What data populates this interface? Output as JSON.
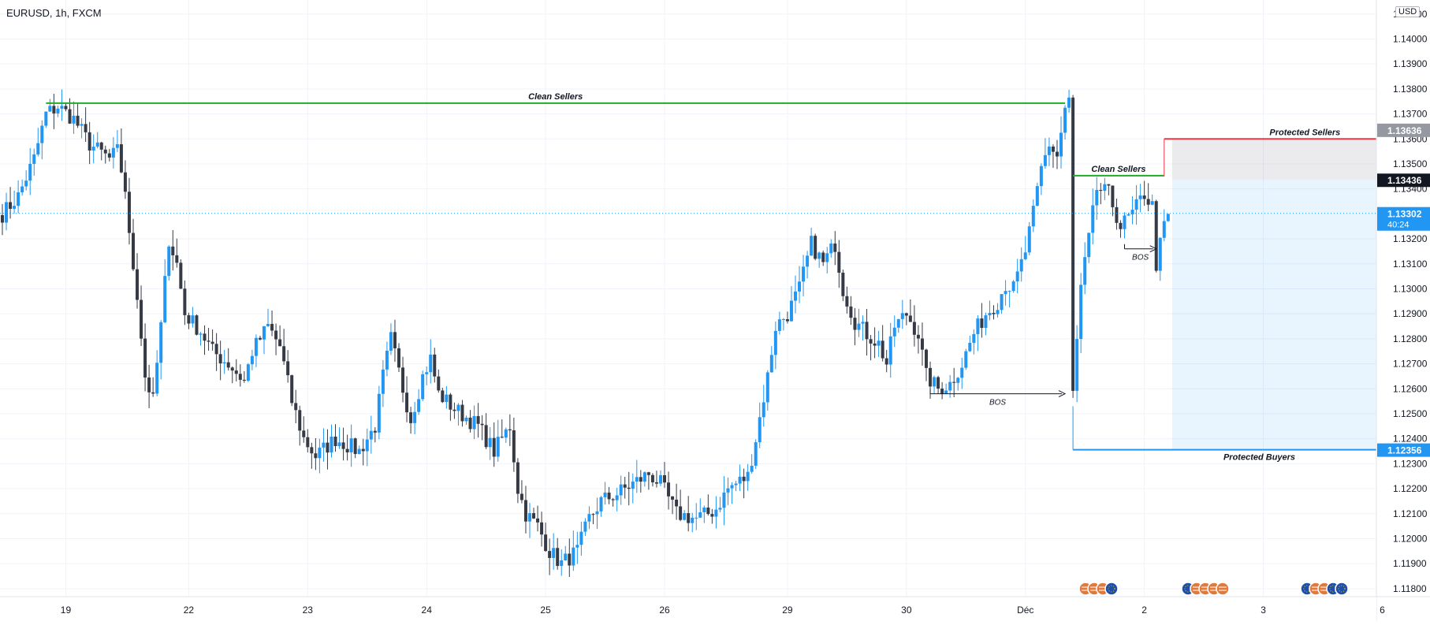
{
  "header": {
    "symbol_title": "EURUSD, 1h, FXCM",
    "currency": "USD"
  },
  "chart_data": {
    "type": "candlestick",
    "price_ticks": [
      "1.14100",
      "1.14000",
      "1.13900",
      "1.13800",
      "1.13700",
      "1.13600",
      "1.13500",
      "1.13400",
      "1.13200",
      "1.13100",
      "1.13000",
      "1.12900",
      "1.12800",
      "1.12700",
      "1.12600",
      "1.12500",
      "1.12400",
      "1.12300",
      "1.12200",
      "1.12100",
      "1.12000",
      "1.11900",
      "1.11800"
    ],
    "ylim": [
      1.117,
      1.1415
    ],
    "time_ticks": [
      "19",
      "22",
      "23",
      "24",
      "25",
      "26",
      "29",
      "30",
      "Déc",
      "2",
      "3",
      "6"
    ],
    "price_labels": [
      {
        "value": "1.13636",
        "price": 1.13636,
        "bg": "#9598a1",
        "fg": "#ffffff"
      },
      {
        "value": "1.13436",
        "price": 1.13436,
        "bg": "#131722",
        "fg": "#ffffff"
      },
      {
        "value": "1.13302",
        "countdown": "40:24",
        "price": 1.13302,
        "bg": "#2196f3",
        "fg": "#ffffff"
      },
      {
        "value": "1.12356",
        "price": 1.12356,
        "bg": "#2196f3",
        "fg": "#ffffff"
      }
    ],
    "current_price": 1.13302,
    "annotations": [
      {
        "label": "Clean Sellers",
        "price": 1.13743,
        "color": "#22ab2a",
        "t_start": 11,
        "t_end": 268
      },
      {
        "label": "Clean Sellers",
        "price": 1.13453,
        "color": "#22ab2a",
        "t_start": 270,
        "t_end": 293
      },
      {
        "label": "Protected Sellers",
        "price": 1.136,
        "color": "#f23645",
        "t_start": 293,
        "t_end": 364
      },
      {
        "label": "Protected Buyers",
        "price": 1.12356,
        "color": "#2196f3",
        "t_start": 270,
        "t_end": 364
      },
      {
        "label": "BOS",
        "price": 1.1258,
        "color": "#131722",
        "t_start": 234,
        "t_end": 268
      },
      {
        "label": "BOS",
        "price": 1.1316,
        "color": "#131722",
        "t_start": 283,
        "t_end": 291
      }
    ],
    "position_box": {
      "t_start": 295,
      "t_end": 355,
      "stop": 1.136,
      "entry": 1.13436,
      "target": 1.12356
    },
    "events": [
      {
        "flags": [
          "us-flag",
          "us-flag",
          "us-flag",
          "eu-flag"
        ]
      },
      {
        "flags": [
          "eu-flag",
          "us-flag",
          "us-flag",
          "us-flag",
          "us-flag"
        ]
      },
      {
        "flags": [
          "eu-flag",
          "us-flag",
          "us-flag",
          "eu-flag",
          "eu-flag"
        ]
      }
    ],
    "colors": {
      "up": "#2196f3",
      "down": "#363a45",
      "grid": "#f0f3fa",
      "text": "#131722"
    },
    "waypoints": [
      [
        0,
        1.133
      ],
      [
        4,
        1.1337
      ],
      [
        8,
        1.1352
      ],
      [
        11,
        1.137
      ],
      [
        14,
        1.1373
      ],
      [
        18,
        1.1368
      ],
      [
        22,
        1.1358
      ],
      [
        27,
        1.1352
      ],
      [
        29,
        1.1355
      ],
      [
        31,
        1.134
      ],
      [
        32,
        1.132
      ],
      [
        34,
        1.1298
      ],
      [
        36,
        1.1265
      ],
      [
        38,
        1.1255
      ],
      [
        40,
        1.1285
      ],
      [
        42,
        1.132
      ],
      [
        44,
        1.131
      ],
      [
        46,
        1.129
      ],
      [
        50,
        1.1283
      ],
      [
        53,
        1.1275
      ],
      [
        57,
        1.127
      ],
      [
        61,
        1.1263
      ],
      [
        63,
        1.1275
      ],
      [
        67,
        1.1285
      ],
      [
        70,
        1.1277
      ],
      [
        73,
        1.1255
      ],
      [
        76,
        1.124
      ],
      [
        79,
        1.1233
      ],
      [
        84,
        1.124
      ],
      [
        90,
        1.1235
      ],
      [
        94,
        1.1245
      ],
      [
        96,
        1.1265
      ],
      [
        98,
        1.128
      ],
      [
        101,
        1.126
      ],
      [
        103,
        1.1248
      ],
      [
        106,
        1.1265
      ],
      [
        108,
        1.1272
      ],
      [
        110,
        1.1258
      ],
      [
        114,
        1.1252
      ],
      [
        120,
        1.1245
      ],
      [
        124,
        1.1235
      ],
      [
        128,
        1.1245
      ],
      [
        130,
        1.122
      ],
      [
        132,
        1.121
      ],
      [
        135,
        1.1205
      ],
      [
        138,
        1.1195
      ],
      [
        141,
        1.119
      ],
      [
        145,
        1.1195
      ],
      [
        148,
        1.1208
      ],
      [
        151,
        1.1215
      ],
      [
        155,
        1.1218
      ],
      [
        159,
        1.1222
      ],
      [
        163,
        1.1226
      ],
      [
        166,
        1.1222
      ],
      [
        170,
        1.121
      ],
      [
        175,
        1.1208
      ],
      [
        178,
        1.121
      ],
      [
        180,
        1.1212
      ],
      [
        183,
        1.122
      ],
      [
        188,
        1.1225
      ],
      [
        190,
        1.124
      ],
      [
        193,
        1.1265
      ],
      [
        195,
        1.1285
      ],
      [
        198,
        1.129
      ],
      [
        201,
        1.13
      ],
      [
        204,
        1.1318
      ],
      [
        207,
        1.131
      ],
      [
        210,
        1.1318
      ],
      [
        212,
        1.13
      ],
      [
        215,
        1.1287
      ],
      [
        218,
        1.1282
      ],
      [
        221,
        1.1278
      ],
      [
        223,
        1.127
      ],
      [
        225,
        1.1285
      ],
      [
        228,
        1.129
      ],
      [
        231,
        1.1282
      ],
      [
        233,
        1.1265
      ],
      [
        236,
        1.126
      ],
      [
        239,
        1.1262
      ],
      [
        242,
        1.127
      ],
      [
        245,
        1.1282
      ],
      [
        248,
        1.129
      ],
      [
        251,
        1.1295
      ],
      [
        253,
        1.1302
      ],
      [
        255,
        1.13
      ],
      [
        258,
        1.1315
      ],
      [
        260,
        1.133
      ],
      [
        262,
        1.1348
      ],
      [
        264,
        1.1358
      ],
      [
        266,
        1.1353
      ],
      [
        268,
        1.1372
      ],
      [
        269,
        1.1375
      ],
      [
        270,
        1.1258
      ],
      [
        272,
        1.13
      ],
      [
        274,
        1.132
      ],
      [
        276,
        1.134
      ],
      [
        279,
        1.1338
      ],
      [
        282,
        1.1325
      ],
      [
        285,
        1.133
      ],
      [
        288,
        1.1338
      ],
      [
        290,
        1.1333
      ],
      [
        291,
        1.131
      ],
      [
        293,
        1.1325
      ],
      [
        294,
        1.133
      ]
    ]
  }
}
